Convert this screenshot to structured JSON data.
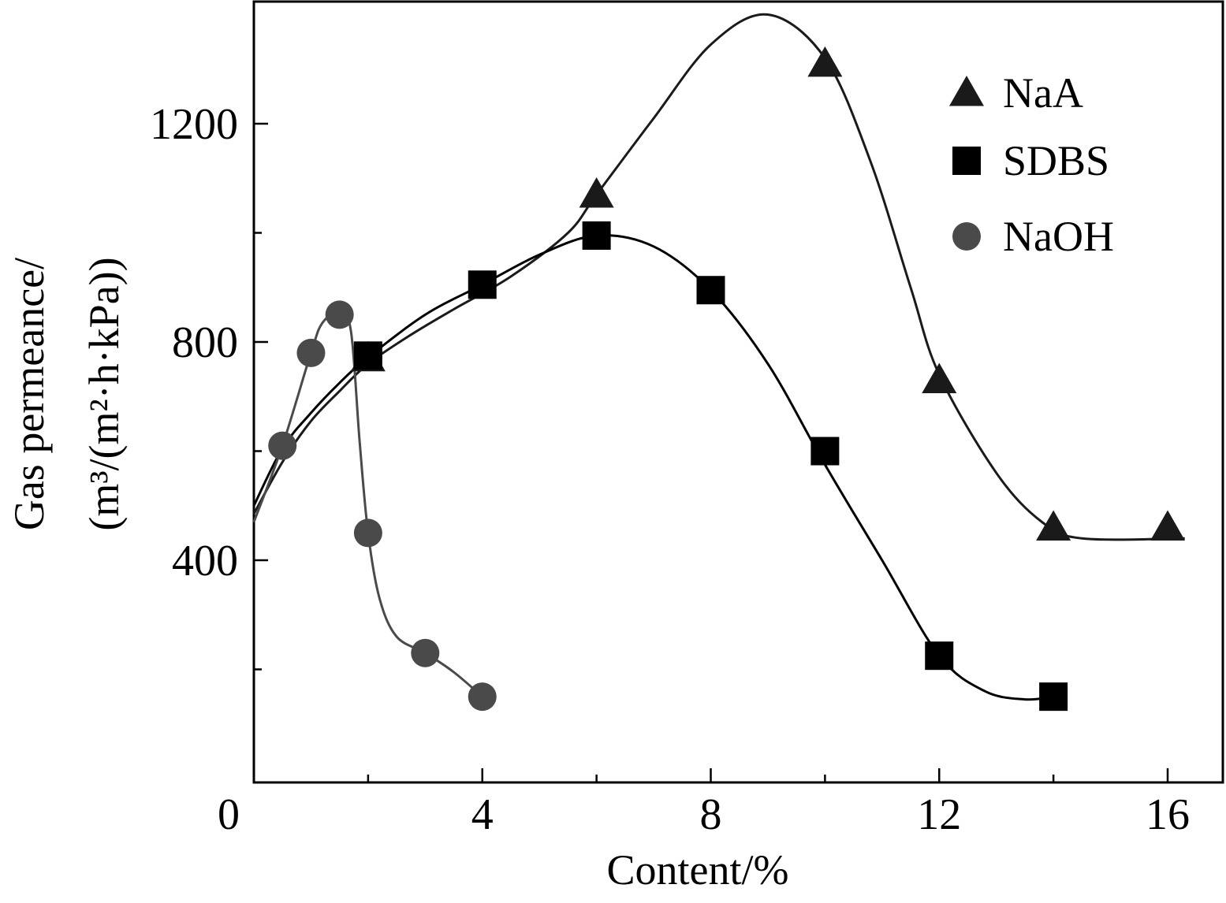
{
  "chart_data": {
    "type": "line",
    "title": "",
    "xlabel": "Content/%",
    "ylabel_lines": [
      "Gas permeance/",
      "(m³/(m²·h·kPa))"
    ],
    "xlim": [
      0,
      17
    ],
    "ylim": [
      0,
      1400
    ],
    "x_ticks_major": [
      0,
      4,
      8,
      12,
      16
    ],
    "x_ticks_minor": [
      2,
      6,
      10,
      14
    ],
    "y_ticks_major": [
      400,
      800,
      1200
    ],
    "y_ticks_minor": [
      200,
      600,
      1000
    ],
    "x_tick_labels": [
      "0",
      "4",
      "8",
      "12",
      "16"
    ],
    "y_tick_labels": [
      "400",
      "800",
      "1200"
    ],
    "grid": false,
    "legend_position": "top-right",
    "series": [
      {
        "name": "NaA",
        "marker": "triangle",
        "color": "#1a1a1a",
        "x": [
          2,
          6,
          10,
          12,
          14,
          16
        ],
        "y": [
          770,
          1070,
          1310,
          730,
          460,
          460
        ],
        "curve": [
          [
            0,
            485
          ],
          [
            0.5,
            580
          ],
          [
            1,
            655
          ],
          [
            1.5,
            710
          ],
          [
            2,
            760
          ],
          [
            2.7,
            810
          ],
          [
            3.5,
            860
          ],
          [
            4.5,
            920
          ],
          [
            5.5,
            1000
          ],
          [
            6,
            1070
          ],
          [
            7,
            1210
          ],
          [
            8,
            1345
          ],
          [
            9,
            1400
          ],
          [
            10,
            1320
          ],
          [
            10.8,
            1130
          ],
          [
            11.5,
            900
          ],
          [
            12,
            740
          ],
          [
            13,
            560
          ],
          [
            13.8,
            470
          ],
          [
            14.5,
            440
          ],
          [
            16.3,
            440
          ]
        ]
      },
      {
        "name": "SDBS",
        "marker": "square",
        "color": "#000000",
        "x": [
          2,
          4,
          6,
          8,
          10,
          12,
          14
        ],
        "y": [
          775,
          905,
          995,
          895,
          600,
          225,
          150
        ],
        "curve": [
          [
            0,
            500
          ],
          [
            0.5,
            605
          ],
          [
            1,
            670
          ],
          [
            1.5,
            725
          ],
          [
            2,
            772
          ],
          [
            3,
            850
          ],
          [
            4,
            905
          ],
          [
            5,
            960
          ],
          [
            6,
            995
          ],
          [
            7,
            975
          ],
          [
            8,
            895
          ],
          [
            9,
            760
          ],
          [
            10,
            575
          ],
          [
            11,
            400
          ],
          [
            12,
            225
          ],
          [
            12.8,
            160
          ],
          [
            13.5,
            145
          ],
          [
            14,
            150
          ]
        ]
      },
      {
        "name": "NaOH",
        "marker": "circle",
        "color": "#4a4a4a",
        "x": [
          0.5,
          1,
          1.5,
          2,
          3,
          4
        ],
        "y": [
          610,
          780,
          850,
          450,
          230,
          150
        ],
        "curve": [
          [
            0,
            470
          ],
          [
            0.5,
            610
          ],
          [
            1,
            780
          ],
          [
            1.2,
            835
          ],
          [
            1.5,
            855
          ],
          [
            1.7,
            820
          ],
          [
            1.85,
            620
          ],
          [
            2,
            450
          ],
          [
            2.2,
            330
          ],
          [
            2.5,
            260
          ],
          [
            3,
            230
          ],
          [
            3.5,
            195
          ],
          [
            4,
            150
          ]
        ]
      }
    ]
  }
}
